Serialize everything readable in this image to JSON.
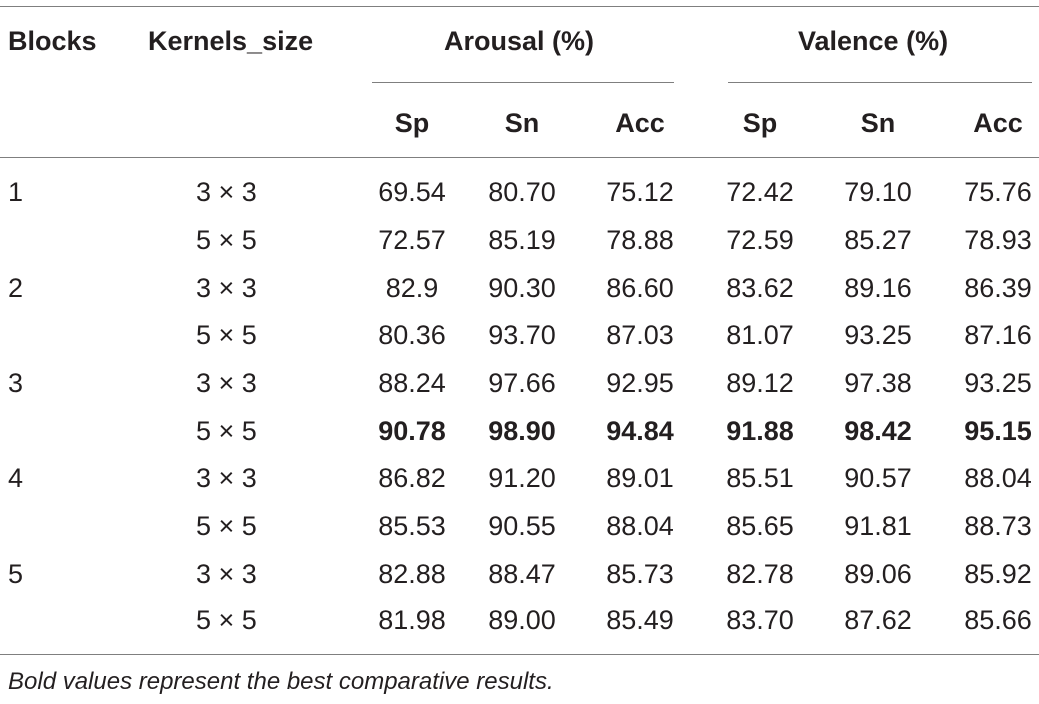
{
  "header": {
    "blocks": "Blocks",
    "kernels_size": "Kernels_size",
    "groups": [
      "Arousal (%)",
      "Valence (%)"
    ],
    "subheaders": [
      "Sp",
      "Sn",
      "Acc",
      "Sp",
      "Sn",
      "Acc"
    ]
  },
  "rows": [
    {
      "block": "1",
      "kernel": "3 × 3",
      "values": [
        "69.54",
        "80.70",
        "75.12",
        "72.42",
        "79.10",
        "75.76"
      ],
      "bold": false
    },
    {
      "block": "",
      "kernel": "5 × 5",
      "values": [
        "72.57",
        "85.19",
        "78.88",
        "72.59",
        "85.27",
        "78.93"
      ],
      "bold": false
    },
    {
      "block": "2",
      "kernel": "3 × 3",
      "values": [
        "82.9",
        "90.30",
        "86.60",
        "83.62",
        "89.16",
        "86.39"
      ],
      "bold": false
    },
    {
      "block": "",
      "kernel": "5 × 5",
      "values": [
        "80.36",
        "93.70",
        "87.03",
        "81.07",
        "93.25",
        "87.16"
      ],
      "bold": false
    },
    {
      "block": "3",
      "kernel": "3 × 3",
      "values": [
        "88.24",
        "97.66",
        "92.95",
        "89.12",
        "97.38",
        "93.25"
      ],
      "bold": false
    },
    {
      "block": "",
      "kernel": "5 × 5",
      "values": [
        "90.78",
        "98.90",
        "94.84",
        "91.88",
        "98.42",
        "95.15"
      ],
      "bold": true
    },
    {
      "block": "4",
      "kernel": "3 × 3",
      "values": [
        "86.82",
        "91.20",
        "89.01",
        "85.51",
        "90.57",
        "88.04"
      ],
      "bold": false
    },
    {
      "block": "",
      "kernel": "5 × 5",
      "values": [
        "85.53",
        "90.55",
        "88.04",
        "85.65",
        "91.81",
        "88.73"
      ],
      "bold": false
    },
    {
      "block": "5",
      "kernel": "3 × 3",
      "values": [
        "82.88",
        "88.47",
        "85.73",
        "82.78",
        "89.06",
        "85.92"
      ],
      "bold": false
    },
    {
      "block": "",
      "kernel": "5 × 5",
      "values": [
        "81.98",
        "89.00",
        "85.49",
        "83.70",
        "87.62",
        "85.66"
      ],
      "bold": false
    }
  ],
  "footnote": "Bold values represent the best comparative results."
}
